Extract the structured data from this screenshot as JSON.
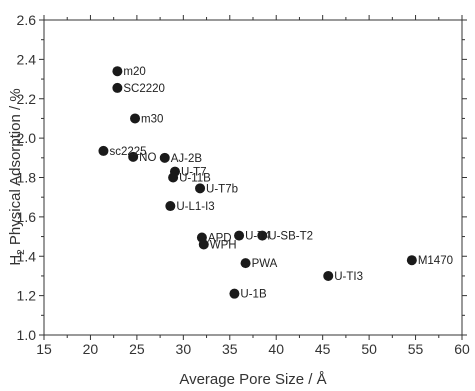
{
  "chart_data": {
    "type": "scatter",
    "xlabel": "Average Pore Size / Å",
    "ylabel_main": "H",
    "ylabel_sub": "2",
    "ylabel_rest": " Physical Adsorption / %",
    "xlim": [
      15,
      60
    ],
    "ylim": [
      1.0,
      2.6
    ],
    "xticks": [
      "15",
      "20",
      "25",
      "30",
      "35",
      "40",
      "45",
      "50",
      "55",
      "60"
    ],
    "yticks": [
      "1.0",
      "1.2",
      "1.4",
      "1.6",
      "1.8",
      "2.0",
      "2.2",
      "2.4",
      "2.6"
    ],
    "grid": false,
    "marker_color": "#1a1a1a",
    "points": [
      {
        "label": "m20",
        "x": 22.9,
        "y": 2.34
      },
      {
        "label": "SC2220",
        "x": 22.9,
        "y": 2.255
      },
      {
        "label": "m30",
        "x": 24.8,
        "y": 2.1
      },
      {
        "label": "sc2225",
        "x": 21.4,
        "y": 1.935
      },
      {
        "label": "NO",
        "x": 24.6,
        "y": 1.905
      },
      {
        "label": "AJ-2B",
        "x": 28.0,
        "y": 1.9
      },
      {
        "label": "U-T7",
        "x": 29.1,
        "y": 1.83
      },
      {
        "label": "U-11B",
        "x": 28.9,
        "y": 1.8
      },
      {
        "label": "U-T7b",
        "x": 31.8,
        "y": 1.745
      },
      {
        "label": "U-L1-I3",
        "x": 28.6,
        "y": 1.655
      },
      {
        "label": "U-T4",
        "x": 36.0,
        "y": 1.505
      },
      {
        "label": "U-SB-T2",
        "x": 38.5,
        "y": 1.505
      },
      {
        "label": "APD",
        "x": 32.0,
        "y": 1.495
      },
      {
        "label": "WPH",
        "x": 32.2,
        "y": 1.46
      },
      {
        "label": "PWA",
        "x": 36.7,
        "y": 1.365
      },
      {
        "label": "U-TI3",
        "x": 45.6,
        "y": 1.3
      },
      {
        "label": "M1470",
        "x": 54.6,
        "y": 1.38
      },
      {
        "label": "U-1B",
        "x": 35.5,
        "y": 1.21
      }
    ]
  }
}
